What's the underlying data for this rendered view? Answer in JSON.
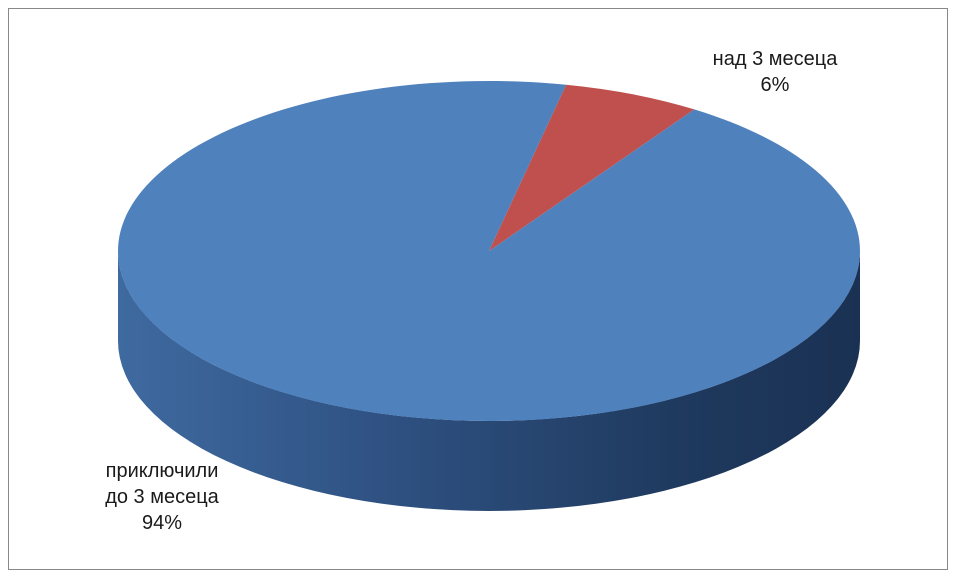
{
  "chart_data": {
    "type": "pie",
    "style": "3d",
    "title": "",
    "slices": [
      {
        "name": "приключили до 3 месеца",
        "label_lines": [
          "приключили",
          "до 3 месеца"
        ],
        "percent_label": "94%",
        "value": 94,
        "color": "#4F81BD"
      },
      {
        "name": "над 3 месеца",
        "label_lines": [
          "над 3 месеца"
        ],
        "percent_label": "6%",
        "value": 6,
        "color": "#C0504D"
      }
    ],
    "legend": "none"
  }
}
